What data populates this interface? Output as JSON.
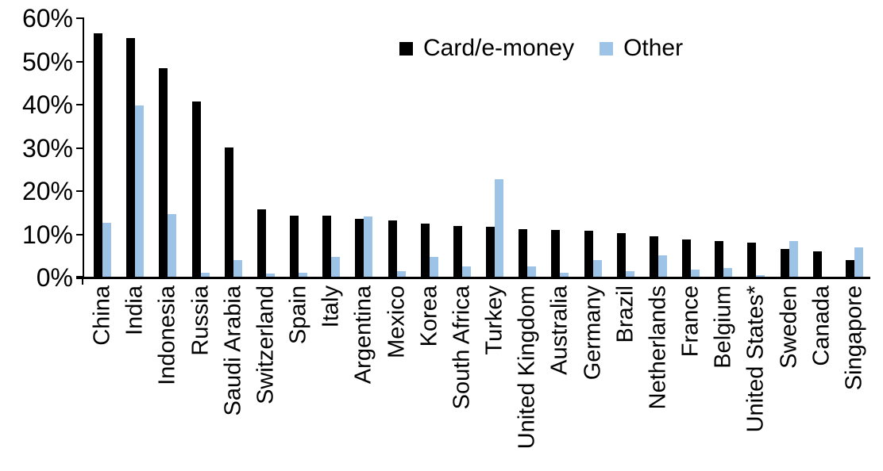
{
  "chart_data": {
    "type": "bar",
    "title": "",
    "xlabel": "",
    "ylabel": "",
    "categories": [
      "China",
      "India",
      "Indonesia",
      "Russia",
      "Saudi Arabia",
      "Switzerland",
      "Spain",
      "Italy",
      "Argentina",
      "Mexico",
      "Korea",
      "South Africa",
      "Turkey",
      "United Kingdom",
      "Australia",
      "Germany",
      "Brazil",
      "Netherlands",
      "France",
      "Belgium",
      "United States*",
      "Sweden",
      "Canada",
      "Singapore"
    ],
    "series": [
      {
        "name": "Card/e-money",
        "color": "#000000",
        "values": [
          56.4,
          55.2,
          48.3,
          40.5,
          29.9,
          15.6,
          14.2,
          14.1,
          13.4,
          13.0,
          12.3,
          11.8,
          11.5,
          11.1,
          10.8,
          10.6,
          10.0,
          9.3,
          8.6,
          8.2,
          7.9,
          6.5,
          5.9,
          3.8
        ]
      },
      {
        "name": "Other",
        "color": "#9DC3E6",
        "values": [
          12.4,
          39.7,
          14.5,
          1.0,
          3.9,
          0.8,
          1.0,
          4.5,
          13.9,
          1.3,
          4.5,
          2.4,
          22.5,
          2.3,
          1.0,
          3.8,
          1.3,
          4.9,
          1.7,
          2.1,
          0.3,
          8.2,
          0.0,
          6.7
        ]
      }
    ],
    "y_axis": {
      "min": 0,
      "max": 60,
      "tick_step": 10,
      "tick_labels": [
        "0%",
        "10%",
        "20%",
        "30%",
        "40%",
        "50%",
        "60%"
      ],
      "format": "percent"
    },
    "legend_position": "top-center",
    "grid": false
  }
}
